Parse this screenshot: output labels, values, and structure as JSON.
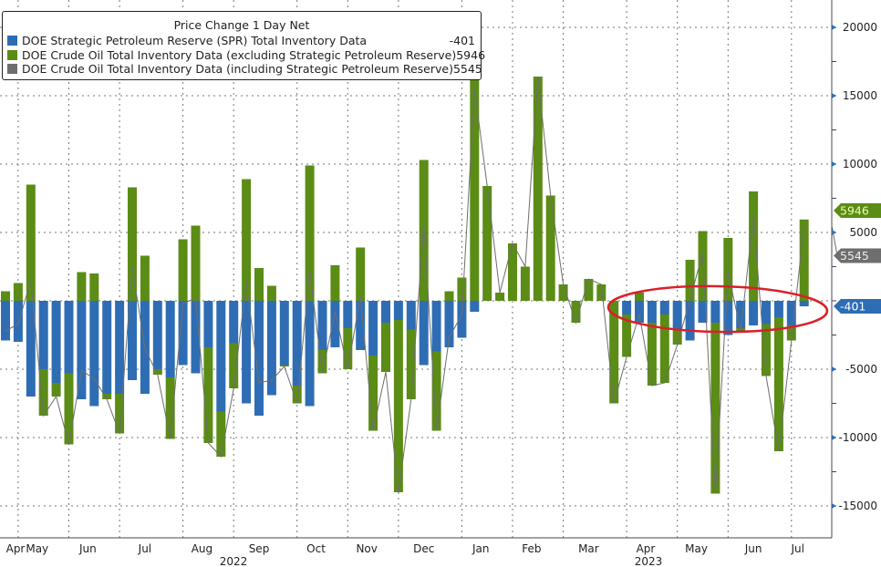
{
  "chart_data": {
    "type": "bar",
    "stacked": true,
    "legend_title": "Price Change 1 Day Net",
    "legend_placement": "top-left",
    "x": [
      "2022-04-29",
      "2022-05-06",
      "2022-05-13",
      "2022-05-20",
      "2022-05-27",
      "2022-06-03",
      "2022-06-10",
      "2022-06-17",
      "2022-06-24",
      "2022-07-01",
      "2022-07-08",
      "2022-07-15",
      "2022-07-22",
      "2022-07-29",
      "2022-08-05",
      "2022-08-12",
      "2022-08-19",
      "2022-08-26",
      "2022-09-02",
      "2022-09-09",
      "2022-09-16",
      "2022-09-23",
      "2022-09-30",
      "2022-10-07",
      "2022-10-14",
      "2022-10-21",
      "2022-10-28",
      "2022-11-04",
      "2022-11-11",
      "2022-11-18",
      "2022-11-25",
      "2022-12-02",
      "2022-12-09",
      "2022-12-16",
      "2022-12-23",
      "2022-12-30",
      "2023-01-06",
      "2023-01-13",
      "2023-01-20",
      "2023-01-27",
      "2023-02-03",
      "2023-02-10",
      "2023-02-17",
      "2023-02-24",
      "2023-03-03",
      "2023-03-10",
      "2023-03-17",
      "2023-03-24",
      "2023-03-31",
      "2023-04-07",
      "2023-04-14",
      "2023-04-21",
      "2023-04-28",
      "2023-05-05",
      "2023-05-12",
      "2023-05-19",
      "2023-05-26",
      "2023-06-02",
      "2023-06-09",
      "2023-06-16",
      "2023-06-23",
      "2023-06-30",
      "2023-07-07",
      "2023-07-14"
    ],
    "x_tick_labels": [
      "Apr",
      "May",
      "Jun",
      "Jul",
      "Aug",
      "Sep",
      "Oct",
      "Nov",
      "Dec",
      "Jan",
      "Feb",
      "Mar",
      "Apr",
      "May",
      "Jun",
      "Jul"
    ],
    "x_year_labels": [
      "2022",
      "2023"
    ],
    "series": [
      {
        "name": "DOE Strategic Petroleum Reserve (SPR) Total Inventory Data",
        "last": "-401",
        "color": "#2e6db4",
        "render": "bar",
        "values": [
          -2900,
          -3000,
          -7000,
          -5000,
          -6000,
          -5300,
          -7200,
          -7700,
          -6800,
          -6800,
          -5800,
          -6800,
          -5000,
          -5600,
          -4700,
          -5300,
          -3400,
          -8100,
          -3100,
          -7500,
          -8400,
          -6900,
          -4700,
          -6200,
          -7700,
          -3600,
          -3400,
          -2000,
          -3600,
          -4000,
          -1600,
          -1400,
          -2100,
          -4700,
          -3700,
          -3400,
          -2700,
          -800,
          0,
          0,
          0,
          0,
          0,
          0,
          0,
          0,
          0,
          0,
          0,
          -1000,
          -1600,
          -1600,
          -1000,
          -2100,
          -2900,
          -1600,
          -1600,
          -2500,
          -2000,
          -1800,
          -1700,
          -1200,
          -1800,
          -401
        ]
      },
      {
        "name": "DOE Crude Oil Total Inventory Data (excluding Strategic Petroleum Reserve)",
        "last": "5946",
        "color": "#5b8c16",
        "render": "bar",
        "values": [
          700,
          1300,
          8500,
          -3400,
          -1000,
          -5200,
          2100,
          2000,
          -400,
          -2900,
          8300,
          3300,
          -400,
          -4500,
          4500,
          5500,
          -7000,
          -3300,
          -3300,
          8900,
          2400,
          1100,
          -100,
          -1300,
          9900,
          -1700,
          2600,
          -3000,
          3900,
          -5500,
          -3600,
          -12600,
          -5100,
          10300,
          -5800,
          700,
          1700,
          16300,
          8400,
          600,
          4200,
          2500,
          16400,
          7700,
          1200,
          -1600,
          1600,
          1200,
          -7500,
          -3100,
          600,
          -4600,
          -5000,
          -1100,
          3000,
          5100,
          -12500,
          4600,
          -200,
          8000,
          -3800,
          -9800,
          -1100,
          5946
        ]
      },
      {
        "name": "DOE Crude Oil Total Inventory Data (including Strategic Petroleum Reserve)",
        "last": "5545",
        "color": "#6e6e6e",
        "render": "line",
        "derived": "sum of the two bar series"
      }
    ],
    "y_axis": {
      "position": "right",
      "ylim": [
        -17000,
        22000
      ],
      "ticks": [
        20000,
        15000,
        10000,
        5000,
        -5000,
        -10000,
        -15000
      ],
      "labels": [
        "20000",
        "15000",
        "10000",
        "5000",
        "-5000",
        "-10000",
        "-15000"
      ]
    },
    "grid": true,
    "annotation": {
      "type": "ellipse",
      "color": "#d9202a",
      "around": "2023-04 to 2023-07 SPR bars"
    },
    "price_tags": [
      {
        "value": "5946",
        "color": "#5b8c16"
      },
      {
        "value": "-401",
        "color": "#2e6db4"
      },
      {
        "value": "5545",
        "color": "#6e6e6e"
      }
    ]
  }
}
